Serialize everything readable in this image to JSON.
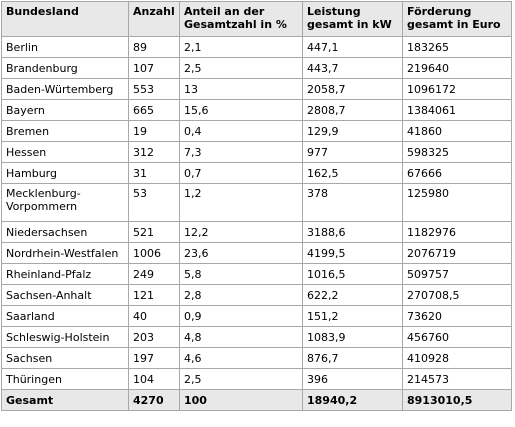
{
  "table": {
    "headers": [
      "Bundesland",
      "Anzahl",
      "Anteil an der Gesamtzahl in %",
      "Leistung gesamt in kW",
      "Förderung gesamt in Euro"
    ],
    "rows": [
      [
        "Berlin",
        "89",
        "2,1",
        "447,1",
        "183265"
      ],
      [
        "Brandenburg",
        "107",
        "2,5",
        "443,7",
        "219640"
      ],
      [
        "Baden-Würtemberg",
        "553",
        "13",
        "2058,7",
        "1096172"
      ],
      [
        "Bayern",
        "665",
        "15,6",
        "2808,7",
        "1384061"
      ],
      [
        "Bremen",
        "19",
        "0,4",
        "129,9",
        "41860"
      ],
      [
        "Hessen",
        "312",
        "7,3",
        "977",
        "598325"
      ],
      [
        "Hamburg",
        "31",
        "0,7",
        "162,5",
        "67666"
      ],
      [
        "Mecklenburg-Vorpommern",
        "53",
        "1,2",
        "378",
        "125980"
      ],
      [
        "Niedersachsen",
        "521",
        "12,2",
        "3188,6",
        "1182976"
      ],
      [
        "Nordrhein-Westfalen",
        "1006",
        "23,6",
        "4199,5",
        "2076719"
      ],
      [
        "Rheinland-Pfalz",
        "249",
        "5,8",
        "1016,5",
        "509757"
      ],
      [
        "Sachsen-Anhalt",
        "121",
        "2,8",
        "622,2",
        "270708,5"
      ],
      [
        "Saarland",
        "40",
        "0,9",
        "151,2",
        "73620"
      ],
      [
        "Schleswig-Holstein",
        "203",
        "4,8",
        "1083,9",
        "456760"
      ],
      [
        "Sachsen",
        "197",
        "4,6",
        "876,7",
        "410928"
      ],
      [
        "Thüringen",
        "104",
        "2,5",
        "396",
        "214573"
      ]
    ],
    "total": [
      "Gesamt",
      "4270",
      "100",
      "18940,2",
      "8913010,5"
    ]
  }
}
